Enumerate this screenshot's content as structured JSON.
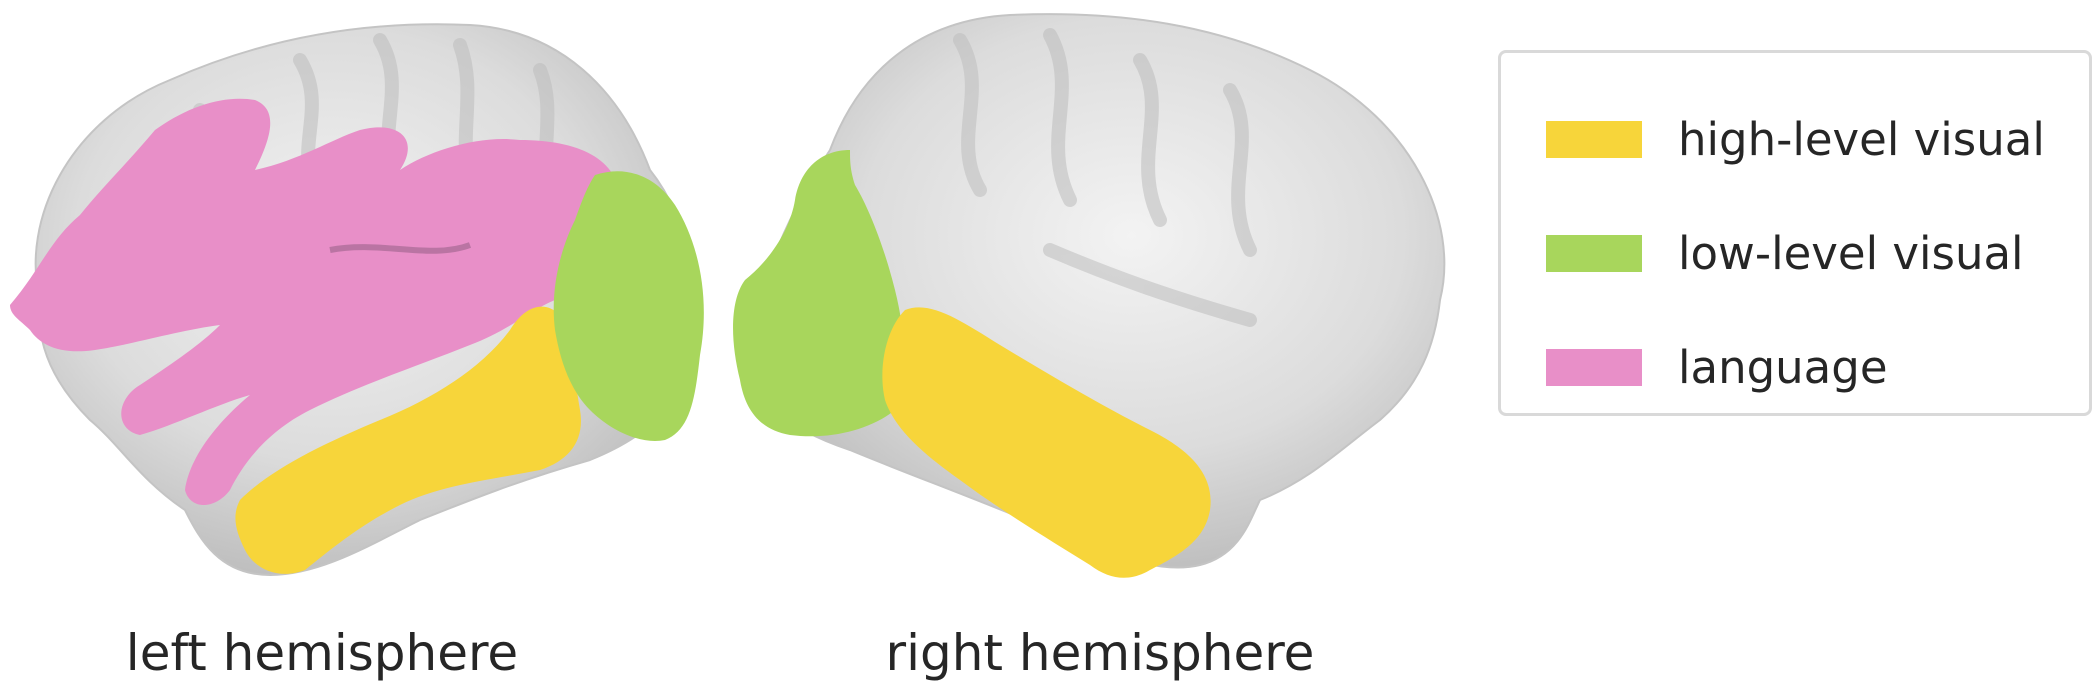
{
  "captions": {
    "left": "left hemisphere",
    "right": "right hemisphere"
  },
  "legend": {
    "items": [
      {
        "label": "high-level visual",
        "color": "#f7d53a"
      },
      {
        "label": "low-level visual",
        "color": "#a8d65c"
      },
      {
        "label": "language",
        "color": "#e88fc8"
      }
    ]
  },
  "colors": {
    "cortex": "#d4d4d4",
    "cortex_light": "#ececec",
    "cortex_shadow": "#a8a8a8",
    "high_level_visual": "#f7d53a",
    "low_level_visual": "#a8d65c",
    "language": "#e88fc8"
  }
}
